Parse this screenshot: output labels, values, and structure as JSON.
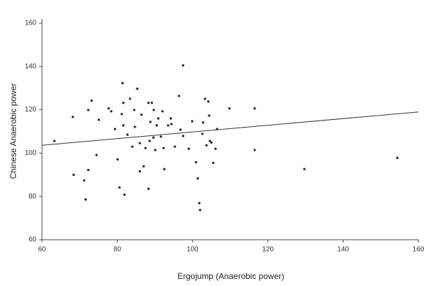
{
  "chart_data": {
    "type": "scatter",
    "x_label": "Ergojump (Anaerobic power)",
    "y_label": "Chinese Anaerobic power",
    "xlim": [
      60,
      160
    ],
    "xticks": [
      60,
      80,
      100,
      120,
      140,
      160
    ],
    "ylim": [
      60,
      160
    ],
    "yticks": [
      60,
      80,
      100,
      120,
      140,
      160
    ],
    "grid": false,
    "color": "#222222",
    "x": [
      63.3,
      68.2,
      68.4,
      71.2,
      71.6,
      72.3,
      72.3,
      73.2,
      74.5,
      75.1,
      77.7,
      78.4,
      80.1,
      80.6,
      81.4,
      81.6,
      81.2,
      81.6,
      81.9,
      82.7,
      83.4,
      84,
      84.5,
      84.7,
      85.3,
      86,
      86.4,
      87,
      87.5,
      88.3,
      88.6,
      88.8,
      89.2,
      89.6,
      89.7,
      90.1,
      90.5,
      90.9,
      91.6,
      92,
      92.3,
      92.5,
      93.5,
      94.2,
      94.4,
      95.3,
      96.4,
      96.8,
      97.5,
      97.5,
      99,
      99.9,
      100.9,
      101.4,
      101.8,
      102,
      102.6,
      102.8,
      103.3,
      103.7,
      104.2,
      104.4,
      104.6,
      105,
      105.5,
      106.1,
      106.5,
      109.8,
      116.5,
      116.5,
      129.7,
      154.4,
      86,
      88.3,
      79.4
    ],
    "values": [
      105.6,
      116.7,
      90,
      87.4,
      78.6,
      119.9,
      92.2,
      124.2,
      99.1,
      115.4,
      120.6,
      119.3,
      97.1,
      84.1,
      132.3,
      123.2,
      118,
      112.8,
      80.8,
      108.5,
      125.1,
      103,
      119.9,
      112.1,
      129.7,
      104.6,
      117.7,
      93.9,
      102.3,
      123.2,
      105.6,
      114.4,
      123.2,
      107.2,
      119.9,
      101.4,
      112.8,
      116,
      107.6,
      119.3,
      102.3,
      92.6,
      112.8,
      116,
      113.4,
      103,
      126.4,
      110.8,
      140.5,
      107.9,
      102,
      114.7,
      95.8,
      88.3,
      76.9,
      73.7,
      108.9,
      114.1,
      125.1,
      103.6,
      123.8,
      117.3,
      105.6,
      104.9,
      95.5,
      102,
      111.1,
      120.6,
      120.6,
      101.4,
      92.6,
      97.8,
      91.6,
      83.5,
      111.1
    ],
    "fit_line": {
      "color": "#333333",
      "x": [
        60,
        160
      ],
      "y": [
        103.6,
        119
      ]
    }
  }
}
